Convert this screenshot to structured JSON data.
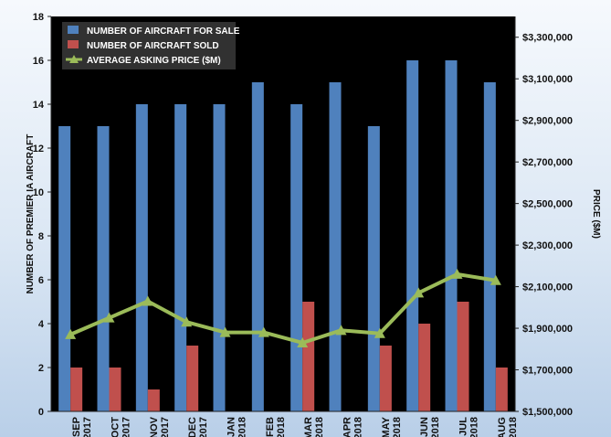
{
  "chart_data": {
    "type": "bar",
    "categories": [
      [
        "SEP",
        "2017"
      ],
      [
        "OCT",
        "2017"
      ],
      [
        "NOV",
        "2017"
      ],
      [
        "DEC",
        "2017"
      ],
      [
        "JAN",
        "2018"
      ],
      [
        "FEB",
        "2018"
      ],
      [
        "MAR",
        "2018"
      ],
      [
        "APR",
        "2018"
      ],
      [
        "MAY",
        "2018"
      ],
      [
        "JUN",
        "2018"
      ],
      [
        "JUL",
        "2018"
      ],
      [
        "AUG",
        "2018"
      ]
    ],
    "series": [
      {
        "name": "NUMBER OF AIRCRAFT FOR SALE",
        "type": "bar",
        "axis": "left",
        "color": "#4f81bd",
        "values": [
          13,
          13,
          14,
          14,
          14,
          15,
          14,
          15,
          13,
          16,
          16,
          15
        ]
      },
      {
        "name": "NUMBER OF AIRCRAFT SOLD",
        "type": "bar",
        "axis": "left",
        "color": "#c0504d",
        "values": [
          2,
          2,
          1,
          3,
          0,
          0,
          5,
          0,
          3,
          4,
          5,
          2
        ]
      },
      {
        "name": "AVERAGE ASKING PRICE ($M)",
        "type": "line",
        "axis": "right",
        "color": "#9bbb59",
        "values": [
          1870000,
          1950000,
          2030000,
          1930000,
          1880000,
          1880000,
          1830000,
          1890000,
          1875000,
          2070000,
          2160000,
          2130000
        ]
      }
    ],
    "ylabel": "NUMBER OF PREMIER IA AIRCRAFT",
    "y2label": "PRICE ($M)",
    "ylim": [
      0,
      18
    ],
    "yticks": [
      0,
      2,
      4,
      6,
      8,
      10,
      12,
      14,
      16,
      18
    ],
    "y2lim": [
      1500000,
      3400000
    ],
    "y2ticks": [
      1500000,
      1700000,
      1900000,
      2100000,
      2300000,
      2500000,
      2700000,
      2900000,
      3100000,
      3300000
    ],
    "y2tick_labels": [
      "$1,500,000",
      "$1,700,000",
      "$1,900,000",
      "$2,100,000",
      "$2,300,000",
      "$2,500,000",
      "$2,700,000",
      "$2,900,000",
      "$3,100,000",
      "$3,300,000"
    ],
    "grid": false,
    "legend_position": "top-left"
  }
}
